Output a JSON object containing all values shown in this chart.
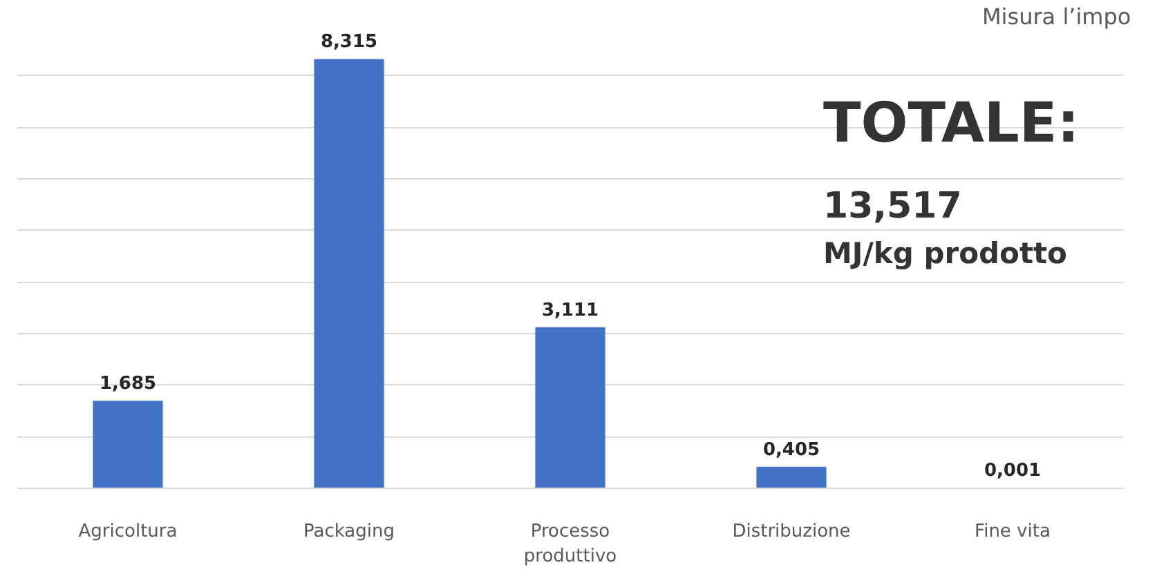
{
  "chart_data": {
    "type": "bar",
    "categories": [
      "Agricoltura",
      "Packaging",
      "Processo produttivo",
      "Distribuzione",
      "Fine vita"
    ],
    "values": [
      1.685,
      8.315,
      3.111,
      0.405,
      0.001
    ],
    "value_labels": [
      "1,685",
      "8,315",
      "3,111",
      "0,405",
      "0,001"
    ],
    "color": "#4472c4",
    "grid": "y",
    "tick_labels": "x",
    "annotations": [
      "Misura l’impo",
      "TOTALE:",
      "13,517",
      "MJ/kg prodotto"
    ]
  }
}
